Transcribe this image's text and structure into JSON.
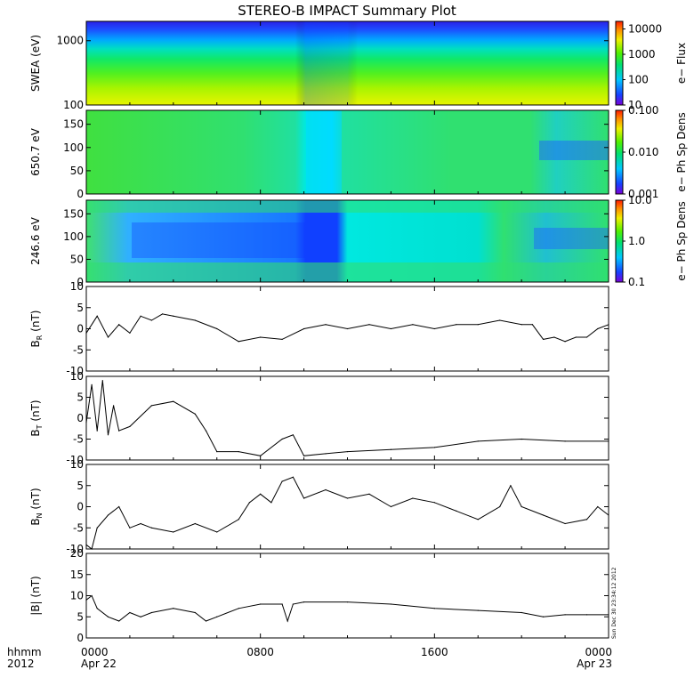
{
  "chart_data": [
    {
      "type": "heatmap",
      "panel": "SWEA",
      "title": "STEREO-B IMPACT Summary Plot",
      "ylabel": "SWEA (eV)",
      "ylog": true,
      "ylim": [
        100,
        2000
      ],
      "yticks": [
        "100",
        "1000"
      ],
      "colorbar": {
        "label": "e− Flux",
        "log": true,
        "range": [
          10,
          20000
        ],
        "ticks": [
          "10",
          "100",
          "1000",
          "10000"
        ]
      }
    },
    {
      "type": "heatmap",
      "panel": "650.7 eV",
      "ylabel": "650.7 eV",
      "ylim": [
        0,
        180
      ],
      "yticks": [
        "0",
        "50",
        "100",
        "150"
      ],
      "colorbar": {
        "label": "e− Ph Sp Dens",
        "log": true,
        "range": [
          0.001,
          0.1
        ],
        "ticks": [
          "0.001",
          "0.010",
          "0.100"
        ]
      }
    },
    {
      "type": "heatmap",
      "panel": "246.6 eV",
      "ylabel": "246.6 eV",
      "ylim": [
        0,
        180
      ],
      "yticks": [
        "0",
        "50",
        "100",
        "150"
      ],
      "colorbar": {
        "label": "e− Ph Sp Dens",
        "log": true,
        "range": [
          0.1,
          10
        ],
        "ticks": [
          "0.1",
          "1.0",
          "10.0"
        ]
      }
    },
    {
      "type": "line",
      "panel": "BR",
      "ylabel": "B",
      "ylabel_sub": "R",
      "ylabel_unit": " (nT)",
      "ylim": [
        -10,
        10
      ],
      "yticks": [
        "-10",
        "-5",
        "0",
        "5",
        "10"
      ],
      "x": [
        0,
        0.5,
        1,
        1.5,
        2,
        2.5,
        3,
        3.5,
        4,
        5,
        6,
        7,
        8,
        9,
        10,
        11,
        12,
        13,
        14,
        15,
        16,
        17,
        18,
        19,
        20,
        20.5,
        21,
        21.5,
        22,
        22.5,
        23,
        23.5,
        24
      ],
      "y": [
        -1,
        3,
        -2,
        1,
        -1,
        3,
        2,
        3.5,
        3,
        2,
        0,
        -3,
        -2,
        -2.5,
        0,
        1,
        0,
        1,
        0,
        1,
        0,
        1,
        1,
        2,
        1,
        1,
        -2.5,
        -2,
        -3,
        -2,
        -2,
        0,
        1
      ]
    },
    {
      "type": "line",
      "panel": "BT",
      "ylabel": "B",
      "ylabel_sub": "T",
      "ylabel_unit": " (nT)",
      "ylim": [
        -10,
        10
      ],
      "yticks": [
        "-10",
        "-5",
        "0",
        "5",
        "10"
      ],
      "x": [
        0,
        0.25,
        0.5,
        0.75,
        1,
        1.25,
        1.5,
        2,
        3,
        4,
        5,
        5.5,
        6,
        7,
        8,
        9,
        9.5,
        10,
        11,
        12,
        14,
        16,
        18,
        20,
        22,
        24
      ],
      "y": [
        -1,
        8,
        -3,
        9,
        -4,
        3,
        -3,
        -2,
        3,
        4,
        1,
        -3,
        -8,
        -8,
        -9,
        -5,
        -4,
        -9,
        -8.5,
        -8,
        -7.5,
        -7,
        -5.5,
        -5,
        -5.5,
        -5.5
      ]
    },
    {
      "type": "line",
      "panel": "BN",
      "ylabel": "B",
      "ylabel_sub": "N",
      "ylabel_unit": " (nT)",
      "ylim": [
        -10,
        10
      ],
      "yticks": [
        "-10",
        "-5",
        "0",
        "5",
        "10"
      ],
      "x": [
        0,
        0.25,
        0.5,
        1,
        1.5,
        2,
        2.5,
        3,
        4,
        5,
        6,
        7,
        7.5,
        8,
        8.5,
        9,
        9.5,
        10,
        11,
        12,
        13,
        14,
        15,
        16,
        17,
        18,
        19,
        19.5,
        20,
        21,
        22,
        23,
        23.5,
        24
      ],
      "y": [
        -9,
        -10,
        -5,
        -2,
        0,
        -5,
        -4,
        -5,
        -6,
        -4,
        -6,
        -3,
        1,
        3,
        1,
        6,
        7,
        2,
        4,
        2,
        3,
        0,
        2,
        1,
        -1,
        -3,
        0,
        5,
        0,
        -2,
        -4,
        -3,
        0,
        -2
      ]
    },
    {
      "type": "line",
      "panel": "|B|",
      "ylabel": "|B| (nT)",
      "ylim": [
        0,
        20
      ],
      "yticks": [
        "0",
        "5",
        "10",
        "15",
        "20"
      ],
      "x": [
        0,
        0.25,
        0.5,
        1,
        1.5,
        2,
        2.5,
        3,
        4,
        5,
        5.5,
        6,
        7,
        8,
        9,
        9.25,
        9.5,
        10,
        12,
        14,
        16,
        18,
        20,
        21,
        22,
        23,
        24
      ],
      "y": [
        9,
        10,
        7,
        5,
        4,
        6,
        5,
        6,
        7,
        6,
        4,
        5,
        7,
        8,
        8,
        4,
        8,
        8.5,
        8.5,
        8,
        7,
        6.5,
        6,
        5,
        5.5,
        5.5,
        5.5
      ]
    }
  ],
  "x_axis": {
    "row_label_1": "hhmm",
    "row_label_2": "2012",
    "ticks": [
      {
        "hour": 0,
        "label": "0000",
        "sub": "Apr 22"
      },
      {
        "hour": 8,
        "label": "0800",
        "sub": ""
      },
      {
        "hour": 16,
        "label": "1600",
        "sub": ""
      },
      {
        "hour": 24,
        "label": "0000",
        "sub": "Apr 23"
      }
    ],
    "range_hours": [
      0,
      24
    ]
  },
  "stamp": "Sun Dec 30 23:34:12 2012"
}
